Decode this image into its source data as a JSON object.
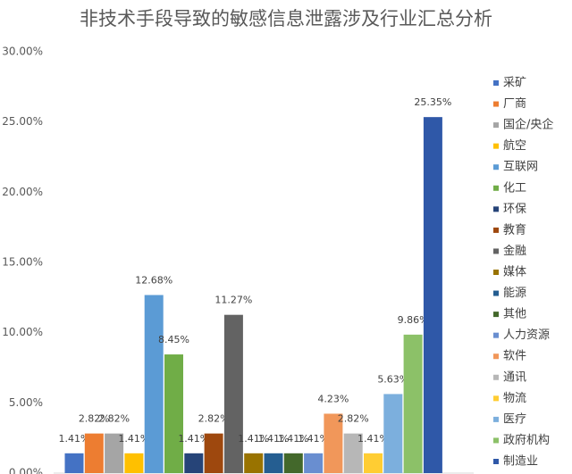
{
  "chart_data": {
    "type": "bar",
    "title": "非技术手段导致的敏感信息泄露涉及行业汇总分析",
    "categories": [
      "采矿",
      "厂商",
      "国企/央企",
      "航空",
      "互联网",
      "化工",
      "环保",
      "教育",
      "金融",
      "媒体",
      "能源",
      "其他",
      "人力资源",
      "软件",
      "通讯",
      "物流",
      "医疗",
      "政府机构",
      "制造业"
    ],
    "values": [
      1.41,
      2.82,
      2.82,
      1.41,
      12.68,
      8.45,
      1.41,
      2.82,
      11.27,
      1.41,
      1.41,
      1.41,
      1.41,
      4.23,
      2.82,
      1.41,
      5.63,
      9.86,
      25.35
    ],
    "value_labels": [
      "1.41%",
      "2.82%",
      "2.82%",
      "1.41%",
      "12.68%",
      "8.45%",
      "1.41%",
      "2.82%",
      "11.27%",
      "1.41%",
      "1.41%",
      "1.41%",
      "1.41%",
      "4.23%",
      "2.82%",
      "1.41%",
      "5.63%",
      "9.86%",
      "25.35%"
    ],
    "colors": [
      "#4472c4",
      "#ed7d31",
      "#a5a5a5",
      "#ffc000",
      "#5b9bd5",
      "#70ad47",
      "#264478",
      "#9e480e",
      "#636363",
      "#997300",
      "#255e91",
      "#43682b",
      "#698ed0",
      "#f1975a",
      "#b7b7b7",
      "#ffcd33",
      "#7cafdd",
      "#8cc168",
      "#2f58a8"
    ],
    "ylim": [
      0,
      30
    ],
    "yticks": [
      {
        "value": 0,
        "label": "0.00%"
      },
      {
        "value": 5,
        "label": "5.00%"
      },
      {
        "value": 10,
        "label": "10.00%"
      },
      {
        "value": 15,
        "label": "15.00%"
      },
      {
        "value": 20,
        "label": "20.00%"
      },
      {
        "value": 25,
        "label": "25.00%"
      },
      {
        "value": 30,
        "label": "30.00%"
      }
    ],
    "grid": false,
    "legend": "right"
  }
}
